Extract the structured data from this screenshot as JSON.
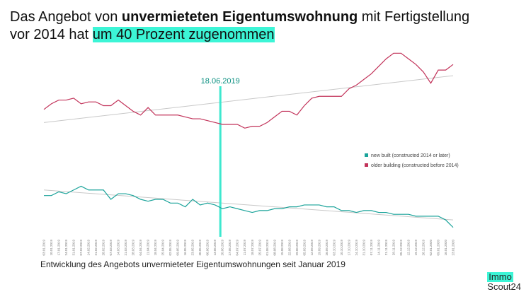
{
  "header": {
    "title_parts": [
      "Das Angebot von ",
      "unvermieteten Eigentumswohnung",
      " mit Fertigstellung",
      "vor 2014 hat ",
      "um 40 Prozent zugenommen"
    ]
  },
  "chart_data": {
    "type": "line",
    "caption": "Entwicklung des Angebots unvermieteter Eigentumswohnungen seit Januar 2019",
    "annotation": "18.06.2019",
    "x": [
      "03.01.2019",
      "10.01.2019",
      "17.01.2019",
      "24.01.2019",
      "31.01.2019",
      "07.02.2019",
      "14.02.2019",
      "21.02.2019",
      "28.02.2019",
      "07.03.2019",
      "14.03.2019",
      "21.03.2019",
      "28.03.2019",
      "04.04.2019",
      "11.04.2019",
      "18.04.2019",
      "25.04.2019",
      "02.05.2019",
      "09.05.2019",
      "16.05.2019",
      "23.05.2019",
      "30.05.2019",
      "06.06.2019",
      "13.06.2019",
      "20.06.2019",
      "27.06.2019",
      "04.07.2019",
      "11.07.2019",
      "18.07.2019",
      "25.07.2019",
      "01.08.2019",
      "08.08.2019",
      "15.08.2019",
      "22.08.2019",
      "29.08.2019",
      "05.09.2019",
      "12.09.2019",
      "19.09.2019",
      "26.09.2019",
      "03.10.2019",
      "10.10.2019",
      "17.10.2019",
      "24.10.2019",
      "31.10.2019",
      "07.11.2019",
      "14.11.2019",
      "21.11.2019",
      "28.11.2019",
      "05.12.2019",
      "12.12.2019",
      "19.12.2019",
      "26.12.2019",
      "02.01.2020",
      "09.01.2020",
      "16.01.2020",
      "23.01.2020"
    ],
    "series": [
      {
        "name": "new built (constructed 2014 or later)",
        "color": "#1aa39a",
        "values": [
          22,
          22,
          24,
          23,
          25,
          27,
          25,
          25,
          25,
          20,
          23,
          23,
          22,
          20,
          19,
          20,
          20,
          18,
          18,
          16,
          20,
          17,
          18,
          17,
          15,
          16,
          15,
          14,
          13,
          14,
          14,
          15,
          15,
          16,
          16,
          17,
          17,
          17,
          16,
          16,
          14,
          14,
          13,
          14,
          14,
          13,
          13,
          12,
          12,
          12,
          11,
          11,
          11,
          11,
          9,
          5
        ],
        "trend": [
          25,
          9
        ]
      },
      {
        "name": "older building (constructed before 2014)",
        "color": "#c2335a",
        "values": [
          68,
          71,
          73,
          73,
          74,
          71,
          72,
          72,
          70,
          70,
          73,
          70,
          67,
          65,
          69,
          65,
          65,
          65,
          65,
          64,
          63,
          63,
          62,
          61,
          60,
          60,
          60,
          58,
          59,
          59,
          61,
          64,
          67,
          67,
          65,
          70,
          74,
          75,
          75,
          75,
          75,
          79,
          81,
          84,
          87,
          91,
          95,
          98,
          98,
          95,
          92,
          88,
          82,
          89,
          89,
          92
        ],
        "trend": [
          61,
          86
        ]
      }
    ],
    "ylim": [
      0,
      100
    ],
    "trend_color": "#c8c8c8",
    "marker_color": "#3de8cf",
    "legend": "right"
  },
  "logo": {
    "top": "Immo",
    "bottom": "Scout24"
  }
}
